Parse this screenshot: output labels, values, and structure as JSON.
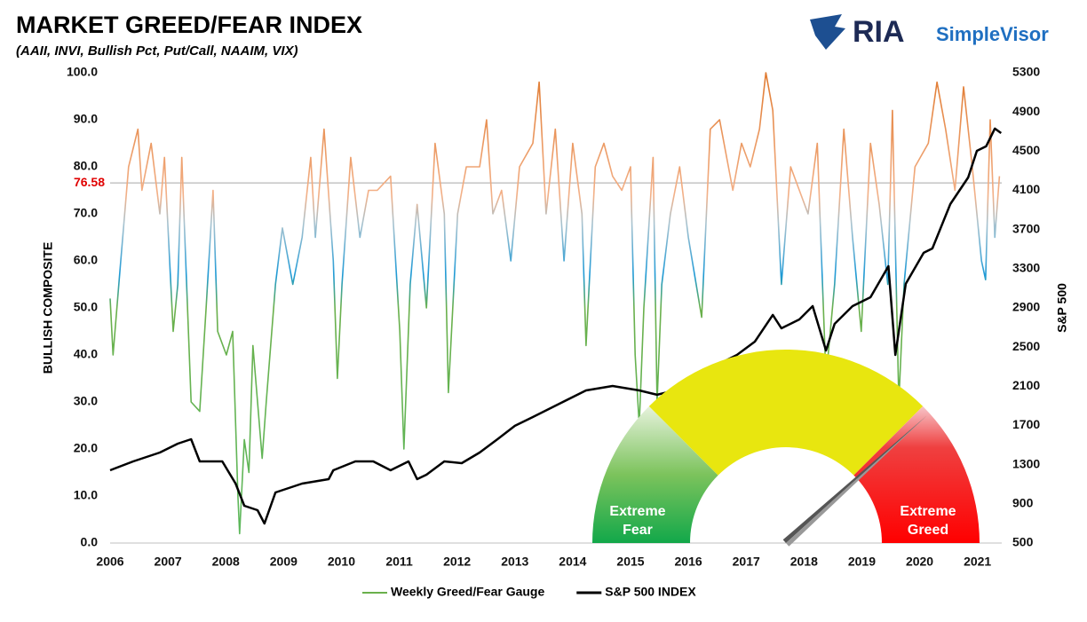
{
  "chart_data": {
    "type": "line",
    "title": "MARKET GREED/FEAR INDEX",
    "subtitle": "(AAII, INVI, Bullish Pct, Put/Call, NAAIM, VIX)",
    "logo": [
      "RIA",
      "SimpleVisor"
    ],
    "ylabel": "BULLISH COMPOSITE",
    "y2label": "S&P 500",
    "xlim": [
      2006,
      2021.42
    ],
    "xticks": [
      2006,
      2007,
      2008,
      2009,
      2010,
      2011,
      2012,
      2013,
      2014,
      2015,
      2016,
      2017,
      2018,
      2019,
      2020,
      2021
    ],
    "ylim": [
      0,
      100
    ],
    "yticks": [
      {
        "value": 0,
        "label": "0.0"
      },
      {
        "value": 10,
        "label": "10.0"
      },
      {
        "value": 20,
        "label": "20.0"
      },
      {
        "value": 30,
        "label": "30.0"
      },
      {
        "value": 40,
        "label": "40.0"
      },
      {
        "value": 50,
        "label": "50.0"
      },
      {
        "value": 60,
        "label": "60.0"
      },
      {
        "value": 70,
        "label": "70.0"
      },
      {
        "value": 80,
        "label": "80.0"
      },
      {
        "value": 90,
        "label": "90.0"
      },
      {
        "value": 100,
        "label": "100.0"
      }
    ],
    "y2lim": [
      500,
      5300
    ],
    "y2ticks": [
      500,
      900,
      1300,
      1700,
      2100,
      2500,
      2900,
      3300,
      3700,
      4100,
      4500,
      4900,
      5300
    ],
    "hline": 76.58,
    "gauge_labels": [
      [
        "Extreme",
        "Fear"
      ],
      [
        "Extreme",
        "Greed"
      ]
    ],
    "legend": "bottom",
    "series": [
      {
        "name": "Weekly Greed/Fear Gauge",
        "color": "#6ab04c",
        "axis": "y",
        "x": [
          2006.0,
          2006.05,
          2006.17,
          2006.32,
          2006.48,
          2006.55,
          2006.71,
          2006.86,
          2006.94,
          2007.09,
          2007.17,
          2007.24,
          2007.4,
          2007.55,
          2007.66,
          2007.78,
          2007.86,
          2008.01,
          2008.12,
          2008.21,
          2008.24,
          2008.32,
          2008.4,
          2008.47,
          2008.63,
          2008.7,
          2008.86,
          2008.98,
          2009.16,
          2009.32,
          2009.47,
          2009.55,
          2009.7,
          2009.86,
          2009.93,
          2010.01,
          2010.16,
          2010.32,
          2010.47,
          2010.62,
          2010.85,
          2011.01,
          2011.08,
          2011.19,
          2011.31,
          2011.47,
          2011.62,
          2011.78,
          2011.85,
          2012.01,
          2012.16,
          2012.39,
          2012.51,
          2012.62,
          2012.77,
          2012.93,
          2013.08,
          2013.31,
          2013.42,
          2013.54,
          2013.7,
          2013.85,
          2014.0,
          2014.16,
          2014.23,
          2014.39,
          2014.54,
          2014.69,
          2014.85,
          2015.0,
          2015.08,
          2015.15,
          2015.23,
          2015.39,
          2015.46,
          2015.54,
          2015.69,
          2015.85,
          2016.0,
          2016.23,
          2016.38,
          2016.54,
          2016.77,
          2016.92,
          2017.07,
          2017.23,
          2017.34,
          2017.46,
          2017.61,
          2017.77,
          2017.92,
          2018.07,
          2018.23,
          2018.38,
          2018.53,
          2018.69,
          2018.84,
          2018.99,
          2019.15,
          2019.3,
          2019.45,
          2019.53,
          2019.64,
          2019.73,
          2019.92,
          2020.15,
          2020.3,
          2020.45,
          2020.61,
          2020.76,
          2020.91,
          2021.07,
          2021.14,
          2021.22,
          2021.3,
          2021.38
        ],
        "values": [
          52,
          40,
          58,
          80,
          88,
          75,
          85,
          70,
          82,
          45,
          55,
          82,
          30,
          28,
          50,
          75,
          45,
          40,
          45,
          10,
          2,
          22,
          15,
          42,
          18,
          30,
          55,
          67,
          55,
          65,
          82,
          65,
          88,
          60,
          35,
          55,
          82,
          65,
          75,
          75,
          78,
          45,
          20,
          55,
          72,
          50,
          85,
          70,
          32,
          70,
          80,
          80,
          90,
          70,
          75,
          60,
          80,
          85,
          98,
          70,
          88,
          60,
          85,
          70,
          42,
          80,
          85,
          78,
          75,
          80,
          40,
          25,
          50,
          82,
          30,
          55,
          70,
          80,
          65,
          48,
          88,
          90,
          75,
          85,
          80,
          88,
          100,
          92,
          55,
          80,
          75,
          70,
          85,
          35,
          55,
          88,
          65,
          45,
          85,
          72,
          55,
          92,
          30,
          55,
          80,
          85,
          98,
          88,
          75,
          97,
          80,
          60,
          56,
          90,
          65,
          78
        ]
      },
      {
        "name": "S&P 500 INDEX",
        "color": "#000000",
        "axis": "y2",
        "x": [
          2006.0,
          2006.4,
          2006.86,
          2007.17,
          2007.4,
          2007.55,
          2007.94,
          2008.17,
          2008.32,
          2008.55,
          2008.67,
          2008.86,
          2009.32,
          2009.78,
          2009.86,
          2010.24,
          2010.55,
          2010.85,
          2011.16,
          2011.31,
          2011.47,
          2011.78,
          2012.08,
          2012.39,
          2012.7,
          2013.0,
          2013.31,
          2013.77,
          2014.23,
          2014.69,
          2015.15,
          2015.46,
          2015.77,
          2016.08,
          2016.54,
          2016.84,
          2017.15,
          2017.46,
          2017.61,
          2017.92,
          2018.15,
          2018.38,
          2018.53,
          2018.84,
          2019.15,
          2019.46,
          2019.58,
          2019.76,
          2020.07,
          2020.22,
          2020.53,
          2020.84,
          2020.99,
          2021.15,
          2021.3,
          2021.41
        ],
        "values": [
          1243,
          1333,
          1424,
          1514,
          1560,
          1333,
          1333,
          1107,
          880,
          835,
          699,
          1016,
          1107,
          1152,
          1243,
          1333,
          1333,
          1243,
          1333,
          1152,
          1197,
          1333,
          1315,
          1424,
          1560,
          1696,
          1786,
          1922,
          2058,
          2103,
          2058,
          2013,
          2058,
          2148,
          2330,
          2420,
          2556,
          2828,
          2692,
          2782,
          2918,
          2465,
          2737,
          2918,
          3009,
          3326,
          2420,
          3145,
          3462,
          3507,
          3960,
          4231,
          4503,
          4549,
          4730,
          4684
        ]
      }
    ]
  }
}
